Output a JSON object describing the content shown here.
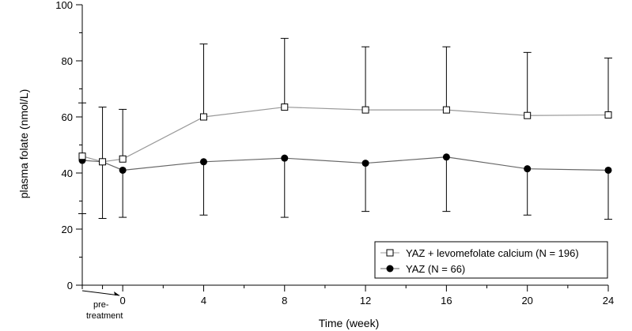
{
  "chart_data": {
    "type": "line",
    "title": "",
    "xlabel": "Time (week)",
    "ylabel": "plasma folate (nmol/L)",
    "ylim": [
      0,
      100
    ],
    "yticks": [
      0,
      20,
      40,
      60,
      80,
      100
    ],
    "xlim": [
      -2,
      24
    ],
    "xticks": [
      0,
      4,
      8,
      12,
      16,
      20,
      24
    ],
    "x_pre_label_line1": "pre-",
    "x_pre_label_line2": "treatment",
    "legend_position": "bottom-right",
    "series": [
      {
        "name": "YAZ + levomefolate calcium (N = 196)",
        "marker": "open-square",
        "color": "#999999",
        "x": [
          -2,
          -1,
          0,
          4,
          8,
          12,
          16,
          20,
          24
        ],
        "values": [
          46,
          44,
          45,
          60,
          63.5,
          62.5,
          62.5,
          60.5,
          60.7
        ],
        "error_upper": [
          65,
          63.5,
          62.7,
          86,
          88,
          85,
          85,
          83,
          81
        ]
      },
      {
        "name": "YAZ (N = 66)",
        "marker": "filled-circle",
        "color": "#666666",
        "x": [
          -2,
          -1,
          0,
          4,
          8,
          12,
          16,
          20,
          24
        ],
        "values": [
          44.5,
          44,
          41,
          44,
          45.3,
          43.5,
          45.7,
          41.5,
          41
        ],
        "error_lower": [
          25.5,
          23.8,
          24.2,
          25,
          24.2,
          26.3,
          26.3,
          25,
          23.5
        ]
      }
    ]
  }
}
